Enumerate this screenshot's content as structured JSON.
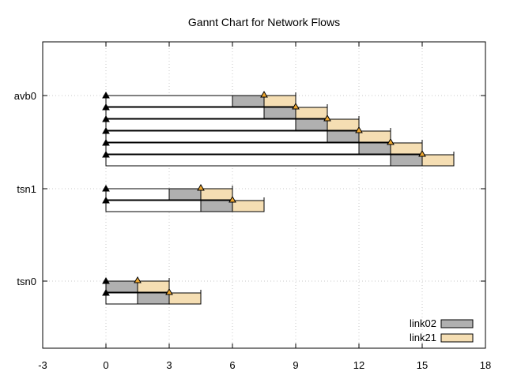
{
  "chart_data": {
    "type": "gantt",
    "title": "Gannt Chart for Network Flows",
    "xlabel": "",
    "ylabel": "",
    "xlim": [
      -3,
      18
    ],
    "xticks": [
      -3,
      0,
      3,
      6,
      9,
      12,
      15,
      18
    ],
    "y_categories": [
      "avb0",
      "tsn1",
      "tsn0"
    ],
    "grid": true,
    "legend_position": "bottom-right",
    "series": [
      {
        "name": "link02",
        "color": "#b0b0b0"
      },
      {
        "name": "link21",
        "color": "#f5deb3"
      }
    ],
    "marker_colors": {
      "release": "#000000",
      "arrival": "#f0a830"
    },
    "flows": [
      {
        "stream": "avb0",
        "frame": 0,
        "release": 0,
        "link02": [
          6,
          7.5
        ],
        "link21": [
          7.5,
          9
        ],
        "deadline": 9
      },
      {
        "stream": "avb0",
        "frame": 1,
        "release": 0,
        "link02": [
          7.5,
          9
        ],
        "link21": [
          9,
          10.5
        ],
        "deadline": 10.5
      },
      {
        "stream": "avb0",
        "frame": 2,
        "release": 0,
        "link02": [
          9,
          10.5
        ],
        "link21": [
          10.5,
          12
        ],
        "deadline": 12
      },
      {
        "stream": "avb0",
        "frame": 3,
        "release": 0,
        "link02": [
          10.5,
          12
        ],
        "link21": [
          12,
          13.5
        ],
        "deadline": 13.5
      },
      {
        "stream": "avb0",
        "frame": 4,
        "release": 0,
        "link02": [
          12,
          13.5
        ],
        "link21": [
          13.5,
          15
        ],
        "deadline": 15
      },
      {
        "stream": "avb0",
        "frame": 5,
        "release": 0,
        "link02": [
          13.5,
          15
        ],
        "link21": [
          15,
          16.5
        ],
        "deadline": 16.5
      },
      {
        "stream": "tsn1",
        "frame": 0,
        "release": 0,
        "link02": [
          3,
          4.5
        ],
        "link21": [
          4.5,
          6
        ],
        "deadline": 6
      },
      {
        "stream": "tsn1",
        "frame": 1,
        "release": 0,
        "link02": [
          4.5,
          6
        ],
        "link21": [
          6,
          7.5
        ],
        "deadline": 7.5
      },
      {
        "stream": "tsn0",
        "frame": 0,
        "release": 0,
        "link02": [
          0,
          1.5
        ],
        "link21": [
          1.5,
          3
        ],
        "deadline": 3
      },
      {
        "stream": "tsn0",
        "frame": 1,
        "release": 0,
        "link02": [
          1.5,
          3
        ],
        "link21": [
          3,
          4.5
        ],
        "deadline": 4.5
      }
    ]
  }
}
